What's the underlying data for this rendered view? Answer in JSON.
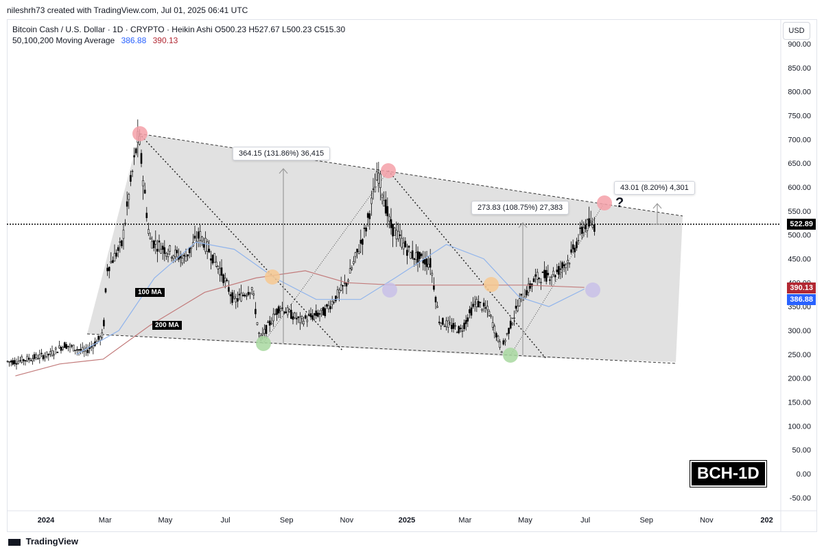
{
  "header": {
    "attribution": "nileshrh73 created with TradingView.com, Jul 01, 2025 06:41 UTC"
  },
  "legend": {
    "line1": "Bitcoin Cash / U.S. Dollar · 1D · CRYPTO · Heikin Ashi  O500.23  H527.67  L500.23  C515.30",
    "ma_label": "50,100,200 Moving Average",
    "ma_value_1": "386.88",
    "ma_value_2": "390.13"
  },
  "currency_button": "USD",
  "price_tags": {
    "last": "522.89",
    "ma_red": "390.13",
    "ma_blue": "386.88"
  },
  "ma_labels": {
    "ma100": "100 MA",
    "ma200": "200 MA"
  },
  "measurements": [
    {
      "text": "364.15 (131.86%) 36,415"
    },
    {
      "text": "273.83 (108.75%) 27,383"
    },
    {
      "text": "43.01 (8.20%) 4,301"
    }
  ],
  "question_mark": "?",
  "watermark": "BCH-1D",
  "footer": {
    "brand": "TradingView"
  },
  "colors": {
    "up": "#000000",
    "ma_blue": "#90b4ec",
    "ma_red": "#c27a7a",
    "tag_red": "#b22833",
    "tag_blue": "#2962ff",
    "channel_fill": "#d9d9d9"
  },
  "chart_data": {
    "type": "candlestick",
    "title": "Bitcoin Cash / U.S. Dollar",
    "y_ticks": [
      "900.00",
      "850.00",
      "800.00",
      "750.00",
      "700.00",
      "650.00",
      "600.00",
      "550.00",
      "500.00",
      "450.00",
      "400.00",
      "350.00",
      "300.00",
      "250.00",
      "200.00",
      "150.00",
      "100.00",
      "50.00",
      "0.00",
      "-50.00"
    ],
    "x_ticks": [
      "2024",
      "Mar",
      "May",
      "Jul",
      "Sep",
      "Nov",
      "2025",
      "Mar",
      "May",
      "Jul",
      "Sep",
      "Nov",
      "202"
    ],
    "ylim": [
      -70,
      930
    ],
    "last_price": 522.89,
    "price_path": [
      {
        "t": "2023-12-01",
        "v": 235
      },
      {
        "t": "2024-01-05",
        "v": 250
      },
      {
        "t": "2024-01-20",
        "v": 270
      },
      {
        "t": "2024-02-10",
        "v": 255
      },
      {
        "t": "2024-02-28",
        "v": 290
      },
      {
        "t": "2024-03-03",
        "v": 430
      },
      {
        "t": "2024-03-18",
        "v": 480
      },
      {
        "t": "2024-03-27",
        "v": 610
      },
      {
        "t": "2024-04-04",
        "v": 710
      },
      {
        "t": "2024-04-15",
        "v": 490
      },
      {
        "t": "2024-05-01",
        "v": 470
      },
      {
        "t": "2024-05-20",
        "v": 450
      },
      {
        "t": "2024-06-05",
        "v": 500
      },
      {
        "t": "2024-06-25",
        "v": 430
      },
      {
        "t": "2024-07-10",
        "v": 360
      },
      {
        "t": "2024-07-28",
        "v": 390
      },
      {
        "t": "2024-08-05",
        "v": 280
      },
      {
        "t": "2024-08-25",
        "v": 350
      },
      {
        "t": "2024-09-15",
        "v": 320
      },
      {
        "t": "2024-10-10",
        "v": 340
      },
      {
        "t": "2024-11-01",
        "v": 400
      },
      {
        "t": "2024-11-20",
        "v": 510
      },
      {
        "t": "2024-12-03",
        "v": 630
      },
      {
        "t": "2024-12-15",
        "v": 520
      },
      {
        "t": "2025-01-05",
        "v": 460
      },
      {
        "t": "2025-01-25",
        "v": 440
      },
      {
        "t": "2025-02-03",
        "v": 320
      },
      {
        "t": "2025-02-25",
        "v": 300
      },
      {
        "t": "2025-03-12",
        "v": 360
      },
      {
        "t": "2025-03-25",
        "v": 340
      },
      {
        "t": "2025-04-07",
        "v": 260
      },
      {
        "t": "2025-04-25",
        "v": 360
      },
      {
        "t": "2025-05-12",
        "v": 410
      },
      {
        "t": "2025-06-01",
        "v": 420
      },
      {
        "t": "2025-06-15",
        "v": 450
      },
      {
        "t": "2025-06-30",
        "v": 520
      }
    ],
    "series": [
      {
        "name": "100 MA",
        "values": [
          {
            "t": "2024-02-01",
            "v": 250
          },
          {
            "t": "2024-03-15",
            "v": 300
          },
          {
            "t": "2024-04-20",
            "v": 410
          },
          {
            "t": "2024-06-01",
            "v": 485
          },
          {
            "t": "2024-07-10",
            "v": 470
          },
          {
            "t": "2024-08-20",
            "v": 410
          },
          {
            "t": "2024-10-01",
            "v": 365
          },
          {
            "t": "2024-11-15",
            "v": 365
          },
          {
            "t": "2024-12-20",
            "v": 410
          },
          {
            "t": "2025-02-10",
            "v": 480
          },
          {
            "t": "2025-03-20",
            "v": 450
          },
          {
            "t": "2025-04-25",
            "v": 370
          },
          {
            "t": "2025-05-25",
            "v": 350
          },
          {
            "t": "2025-06-30",
            "v": 386.88
          }
        ]
      },
      {
        "name": "200 MA",
        "values": [
          {
            "t": "2023-12-01",
            "v": 205
          },
          {
            "t": "2024-01-15",
            "v": 230
          },
          {
            "t": "2024-02-28",
            "v": 240
          },
          {
            "t": "2024-04-15",
            "v": 310
          },
          {
            "t": "2024-06-10",
            "v": 380
          },
          {
            "t": "2024-08-01",
            "v": 410
          },
          {
            "t": "2024-09-20",
            "v": 425
          },
          {
            "t": "2024-11-01",
            "v": 400
          },
          {
            "t": "2024-12-20",
            "v": 395
          },
          {
            "t": "2025-03-01",
            "v": 395
          },
          {
            "t": "2025-05-01",
            "v": 395
          },
          {
            "t": "2025-06-30",
            "v": 390.13
          }
        ]
      }
    ]
  }
}
